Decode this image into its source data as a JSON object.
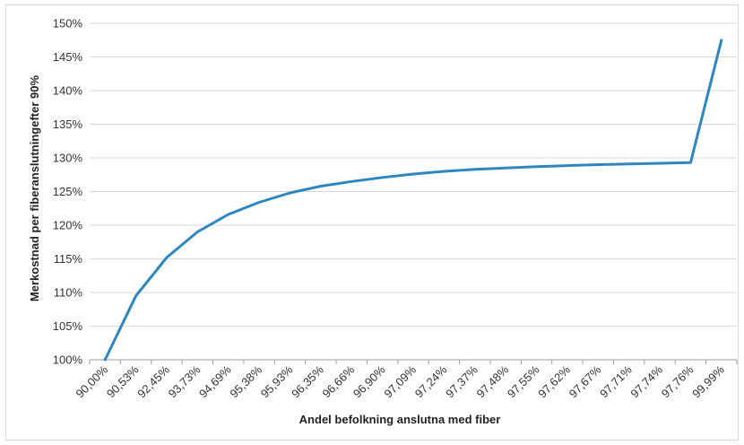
{
  "chart_data": {
    "type": "line",
    "title": "",
    "xlabel": "Andel befolkning anslutna med fiber",
    "ylabel": "Merkostnad per fiberanslutningefter 90%",
    "categories": [
      "90,00%",
      "90,53%",
      "92,45%",
      "93,73%",
      "94,69%",
      "95,38%",
      "95,93%",
      "96,35%",
      "96,66%",
      "96,90%",
      "97,09%",
      "97,24%",
      "97,37%",
      "97,48%",
      "97,55%",
      "97,62%",
      "97,67%",
      "97,71%",
      "97,74%",
      "97,76%",
      "99,99%"
    ],
    "series": [
      {
        "color": "#2e86c1",
        "values": [
          100.0,
          109.5,
          115.2,
          119.0,
          121.6,
          123.4,
          124.8,
          125.8,
          126.5,
          127.1,
          127.6,
          128.0,
          128.3,
          128.5,
          128.7,
          128.85,
          129.0,
          129.1,
          129.2,
          129.3,
          147.5
        ]
      }
    ],
    "ylim": [
      100,
      150
    ],
    "yticks": [
      "100%",
      "105%",
      "110%",
      "115%",
      "120%",
      "125%",
      "130%",
      "135%",
      "140%",
      "145%",
      "150%"
    ],
    "grid": "horizontal",
    "legend": "none"
  }
}
